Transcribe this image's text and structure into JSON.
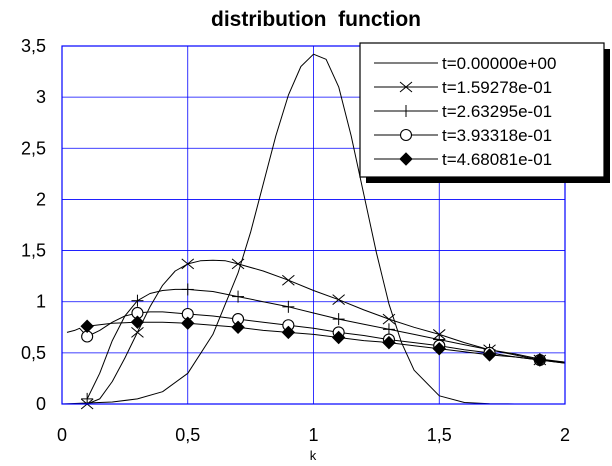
{
  "chart_data": {
    "type": "line",
    "title": "distribution  function",
    "xlabel": "k",
    "ylabel": "",
    "xlim": [
      0,
      2
    ],
    "ylim": [
      0,
      3.5
    ],
    "grid": true,
    "legend_position": "top-right",
    "decimal_separator": ",",
    "x_ticks": [
      "0",
      "0,5",
      "1",
      "1,5",
      "2"
    ],
    "y_ticks": [
      "0",
      "0,5",
      "1",
      "1,5",
      "2",
      "2,5",
      "3",
      "3,5"
    ],
    "colors": {
      "plot_frame": "#0000ff",
      "grid": "#0000ff",
      "series": "#000000"
    },
    "series": [
      {
        "name": "t=0.00000e+00",
        "marker": "none",
        "x": [
          0.0,
          0.1,
          0.2,
          0.3,
          0.4,
          0.5,
          0.6,
          0.7,
          0.75,
          0.8,
          0.85,
          0.9,
          0.95,
          1.0,
          1.05,
          1.1,
          1.15,
          1.2,
          1.25,
          1.3,
          1.35,
          1.4,
          1.5,
          1.6,
          1.7,
          1.8,
          2.0
        ],
        "y": [
          0,
          0.01,
          0.02,
          0.05,
          0.12,
          0.3,
          0.68,
          1.28,
          1.68,
          2.15,
          2.62,
          3.02,
          3.3,
          3.42,
          3.37,
          3.1,
          2.62,
          2.05,
          1.48,
          0.98,
          0.6,
          0.33,
          0.08,
          0.015,
          0.003,
          0,
          0
        ]
      },
      {
        "name": "t=1.59278e-01",
        "marker": "x",
        "x": [
          0.1,
          0.15,
          0.2,
          0.25,
          0.3,
          0.35,
          0.4,
          0.45,
          0.5,
          0.55,
          0.6,
          0.65,
          0.7,
          0.8,
          0.9,
          1.0,
          1.1,
          1.2,
          1.3,
          1.4,
          1.5,
          1.6,
          1.7,
          1.8,
          1.9,
          2.0
        ],
        "y": [
          0,
          0.05,
          0.22,
          0.45,
          0.7,
          0.95,
          1.16,
          1.3,
          1.37,
          1.4,
          1.405,
          1.4,
          1.37,
          1.3,
          1.21,
          1.11,
          1.02,
          0.92,
          0.83,
          0.75,
          0.68,
          0.6,
          0.53,
          0.48,
          0.43,
          0.4
        ],
        "marker_x": [
          0.1,
          0.3,
          0.5,
          0.7,
          0.9,
          1.1,
          1.3,
          1.5,
          1.7,
          1.9
        ]
      },
      {
        "name": "t=2.63295e-01",
        "marker": "+",
        "x": [
          0.1,
          0.15,
          0.2,
          0.25,
          0.3,
          0.35,
          0.4,
          0.45,
          0.5,
          0.55,
          0.6,
          0.7,
          0.8,
          0.9,
          1.0,
          1.1,
          1.2,
          1.3,
          1.4,
          1.5,
          1.6,
          1.7,
          1.8,
          1.9,
          2.0
        ],
        "y": [
          0.05,
          0.3,
          0.62,
          0.86,
          1.01,
          1.08,
          1.11,
          1.12,
          1.12,
          1.11,
          1.1,
          1.05,
          1.0,
          0.95,
          0.89,
          0.83,
          0.78,
          0.73,
          0.68,
          0.63,
          0.58,
          0.53,
          0.49,
          0.44,
          0.41
        ],
        "marker_x": [
          0.1,
          0.3,
          0.5,
          0.7,
          0.9,
          1.1,
          1.3,
          1.5,
          1.7,
          1.9
        ]
      },
      {
        "name": "t=3.93318e-01",
        "marker": "circle",
        "x": [
          0.02,
          0.05,
          0.07,
          0.1,
          0.15,
          0.2,
          0.25,
          0.3,
          0.35,
          0.4,
          0.5,
          0.6,
          0.7,
          0.8,
          0.9,
          1.0,
          1.1,
          1.2,
          1.3,
          1.4,
          1.5,
          1.6,
          1.7,
          1.8,
          1.9,
          2.0
        ],
        "y": [
          0.7,
          0.72,
          0.74,
          0.66,
          0.72,
          0.8,
          0.86,
          0.89,
          0.9,
          0.9,
          0.88,
          0.86,
          0.83,
          0.8,
          0.77,
          0.74,
          0.7,
          0.67,
          0.63,
          0.6,
          0.57,
          0.53,
          0.5,
          0.46,
          0.43,
          0.4
        ],
        "marker_x": [
          0.1,
          0.3,
          0.5,
          0.7,
          0.9,
          1.1,
          1.3,
          1.5,
          1.7,
          1.9
        ]
      },
      {
        "name": "t=4.68081e-01",
        "marker": "diamond",
        "x": [
          0.1,
          0.2,
          0.3,
          0.4,
          0.5,
          0.6,
          0.7,
          0.8,
          0.9,
          1.0,
          1.1,
          1.2,
          1.3,
          1.4,
          1.5,
          1.6,
          1.7,
          1.8,
          1.9,
          2.0
        ],
        "y": [
          0.76,
          0.79,
          0.8,
          0.8,
          0.79,
          0.77,
          0.75,
          0.72,
          0.7,
          0.68,
          0.65,
          0.62,
          0.6,
          0.57,
          0.54,
          0.51,
          0.48,
          0.46,
          0.43,
          0.41
        ],
        "marker_x": [
          0.1,
          0.3,
          0.5,
          0.7,
          0.9,
          1.1,
          1.3,
          1.5,
          1.7,
          1.9
        ]
      }
    ]
  }
}
